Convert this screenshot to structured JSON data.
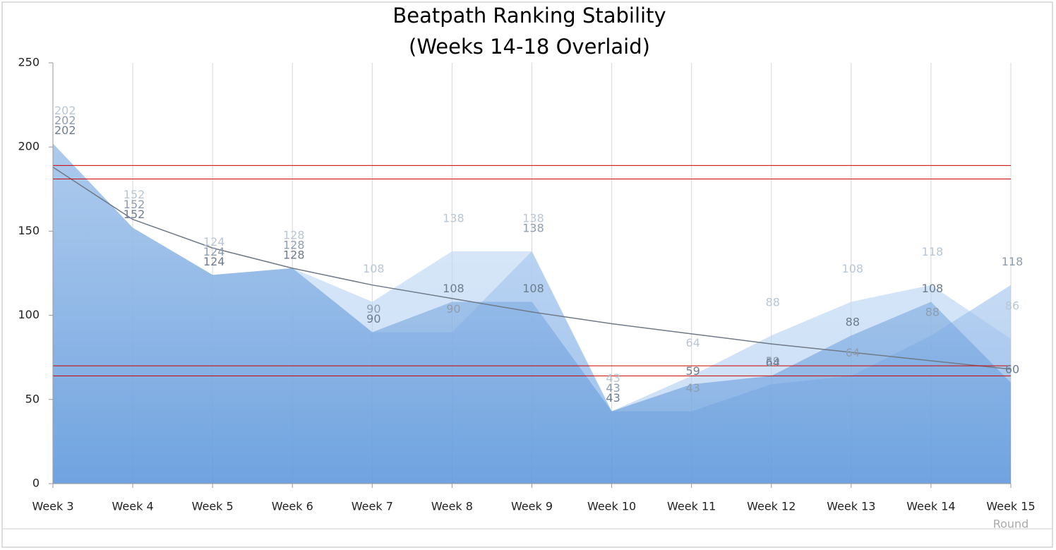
{
  "chart_data": {
    "type": "area",
    "title": "Beatpath Ranking Stability",
    "subtitle": "(Weeks 14-18 Overlaid)",
    "x_label": "Round",
    "categories": [
      "Week 3",
      "Week 4",
      "Week 5",
      "Week 6",
      "Week 7",
      "Week 8",
      "Week 9",
      "Week 10",
      "Week 11",
      "Week 12",
      "Week 13",
      "Week 14",
      "Week 15"
    ],
    "ylim": [
      0,
      250
    ],
    "yticks": [
      0,
      50,
      100,
      150,
      200,
      250
    ],
    "grid": true,
    "series": [
      {
        "color": "#9cc3ee",
        "values": [
          202,
          152,
          124,
          128,
          108,
          138,
          138,
          43,
          64,
          88,
          108,
          118,
          86
        ]
      },
      {
        "color": "#78aae6",
        "values": [
          202,
          152,
          124,
          128,
          90,
          90,
          138,
          43,
          43,
          59,
          64,
          88,
          118
        ]
      },
      {
        "color": "#4a8ad6",
        "values": [
          202,
          152,
          124,
          128,
          90,
          108,
          108,
          43,
          59,
          64,
          88,
          108,
          60
        ]
      }
    ],
    "trend": {
      "color": "#707a88",
      "values": [
        188,
        157,
        140,
        128,
        118,
        110,
        102,
        95,
        89,
        83,
        78,
        73,
        68
      ]
    },
    "reference_lines": {
      "color": "#cc0000",
      "values": [
        189,
        181,
        70,
        64
      ]
    }
  }
}
